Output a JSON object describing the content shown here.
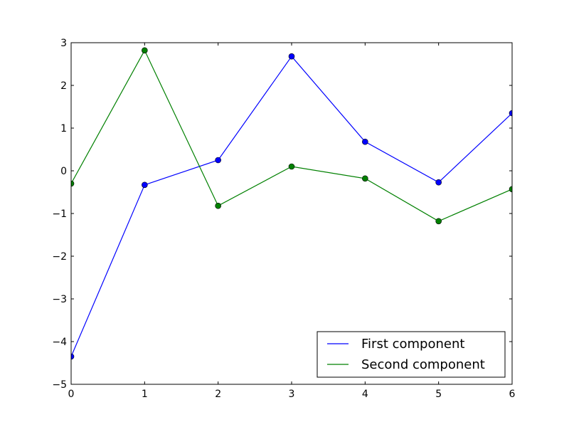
{
  "chart_data": {
    "type": "line",
    "title": "",
    "xlabel": "",
    "ylabel": "",
    "xlim": [
      0,
      6
    ],
    "ylim": [
      -5,
      3
    ],
    "x_ticks": [
      0,
      1,
      2,
      3,
      4,
      5,
      6
    ],
    "x_tick_labels": [
      "0",
      "1",
      "2",
      "3",
      "4",
      "5",
      "6"
    ],
    "y_ticks": [
      -5,
      -4,
      -3,
      -2,
      -1,
      0,
      1,
      2,
      3
    ],
    "y_tick_labels": [
      "−5",
      "−4",
      "−3",
      "−2",
      "−1",
      "0",
      "1",
      "2",
      "3"
    ],
    "grid": false,
    "legend_position": "bottom-right",
    "x": [
      0,
      1,
      2,
      3,
      4,
      5,
      6
    ],
    "series": [
      {
        "name": "First component",
        "color": "#0000ff",
        "marker": "circle",
        "values": [
          -4.35,
          -0.33,
          0.25,
          2.68,
          0.68,
          -0.27,
          1.35
        ]
      },
      {
        "name": "Second component",
        "color": "#008000",
        "marker": "circle",
        "values": [
          -0.3,
          2.82,
          -0.82,
          0.1,
          -0.18,
          -1.18,
          -0.43
        ]
      }
    ]
  }
}
